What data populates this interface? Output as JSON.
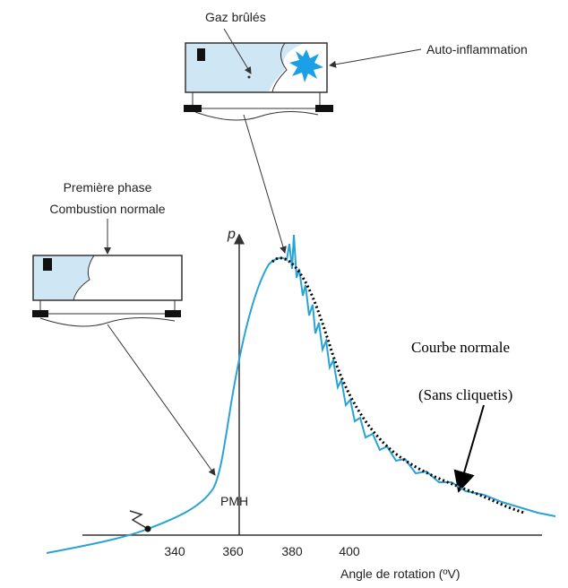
{
  "labels": {
    "burnt_gas": "Gaz brûlés",
    "auto_ignition": "Auto-inflammation",
    "first_phase": "Première phase",
    "normal_combustion": "Combustion normale",
    "pressure": "p",
    "tdc": "PMH",
    "normal_curve": "Courbe normale",
    "no_knock": "(Sans cliquetis)",
    "x_axis": "Angle de rotation (ºV)"
  },
  "xticks": [
    340,
    360,
    380,
    400
  ]
}
